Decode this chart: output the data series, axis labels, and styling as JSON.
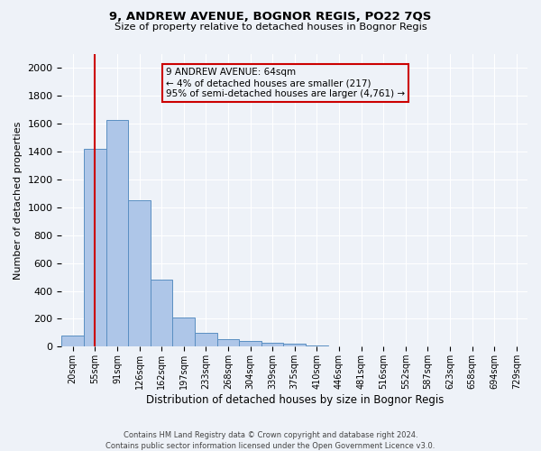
{
  "title1": "9, ANDREW AVENUE, BOGNOR REGIS, PO22 7QS",
  "title2": "Size of property relative to detached houses in Bognor Regis",
  "xlabel": "Distribution of detached houses by size in Bognor Regis",
  "ylabel": "Number of detached properties",
  "footnote": "Contains HM Land Registry data © Crown copyright and database right 2024.\nContains public sector information licensed under the Open Government Licence v3.0.",
  "categories": [
    "20sqm",
    "55sqm",
    "91sqm",
    "126sqm",
    "162sqm",
    "197sqm",
    "233sqm",
    "268sqm",
    "304sqm",
    "339sqm",
    "375sqm",
    "410sqm",
    "446sqm",
    "481sqm",
    "516sqm",
    "552sqm",
    "587sqm",
    "623sqm",
    "658sqm",
    "694sqm",
    "729sqm"
  ],
  "values": [
    80,
    1420,
    1630,
    1050,
    480,
    210,
    100,
    55,
    40,
    30,
    20,
    10,
    3,
    2,
    1,
    1,
    0,
    0,
    0,
    0,
    0
  ],
  "bar_color": "#aec6e8",
  "bar_edge_color": "#5a8fc2",
  "ylim": [
    0,
    2100
  ],
  "yticks": [
    0,
    200,
    400,
    600,
    800,
    1000,
    1200,
    1400,
    1600,
    1800,
    2000
  ],
  "property_line_x": 1,
  "annotation_line1": "9 ANDREW AVENUE: 64sqm",
  "annotation_line2": "← 4% of detached houses are smaller (217)",
  "annotation_line3": "95% of semi-detached houses are larger (4,761) →",
  "annotation_box_edgecolor": "#cc0000",
  "background_color": "#eef2f8",
  "grid_color": "#ffffff"
}
